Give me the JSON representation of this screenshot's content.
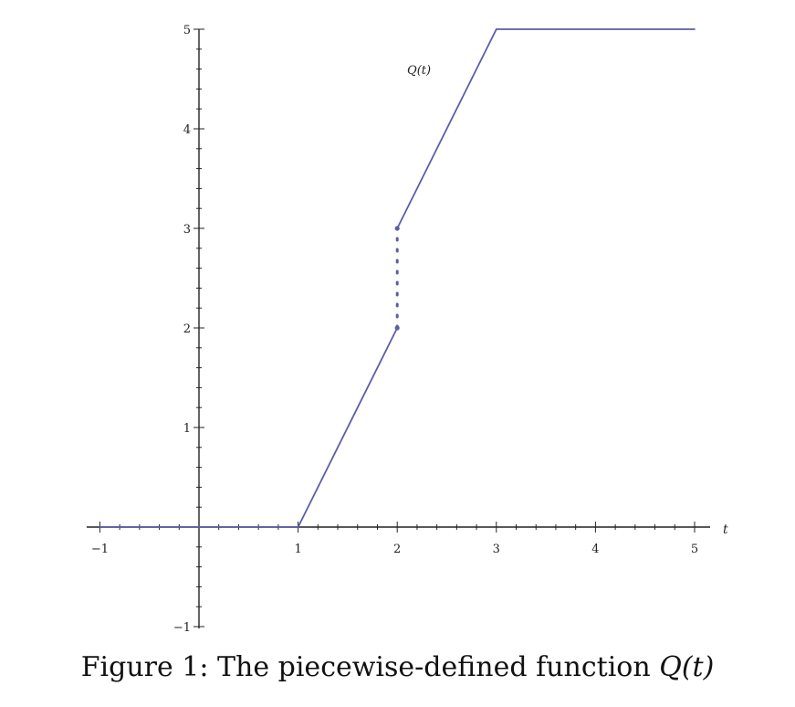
{
  "chart_data": {
    "type": "line",
    "title": "",
    "xlabel": "t",
    "ylabel": "",
    "xlim": [
      -1.05,
      5.3
    ],
    "ylim": [
      -1,
      5
    ],
    "xticks": [
      -1,
      1,
      2,
      3,
      4,
      5
    ],
    "yticks": [
      -1,
      1,
      2,
      3,
      4,
      5
    ],
    "x_tick_labels": [
      "−1",
      "1",
      "2",
      "3",
      "4",
      "5"
    ],
    "y_tick_labels": [
      "−1",
      "1",
      "2",
      "3",
      "4",
      "5"
    ],
    "grid": false,
    "series": [
      {
        "name": "Q(t)",
        "color": "#5b5ea6",
        "segments": [
          [
            [
              -1,
              0
            ],
            [
              1,
              0
            ]
          ],
          [
            [
              1,
              0
            ],
            [
              2,
              2
            ]
          ],
          [
            [
              2,
              3
            ],
            [
              3,
              5
            ]
          ],
          [
            [
              3,
              5
            ],
            [
              5,
              5
            ]
          ]
        ],
        "dashed_segments": [
          [
            [
              2,
              2
            ],
            [
              2,
              3
            ]
          ]
        ],
        "points": [
          [
            2,
            2
          ],
          [
            2,
            3
          ]
        ]
      }
    ],
    "annotations": [
      {
        "text": "Q(t)",
        "x": 2.1,
        "y": 4.55
      }
    ]
  },
  "caption": {
    "prefix": "Figure 1: The piecewise-defined function ",
    "math": "Q(t)"
  }
}
